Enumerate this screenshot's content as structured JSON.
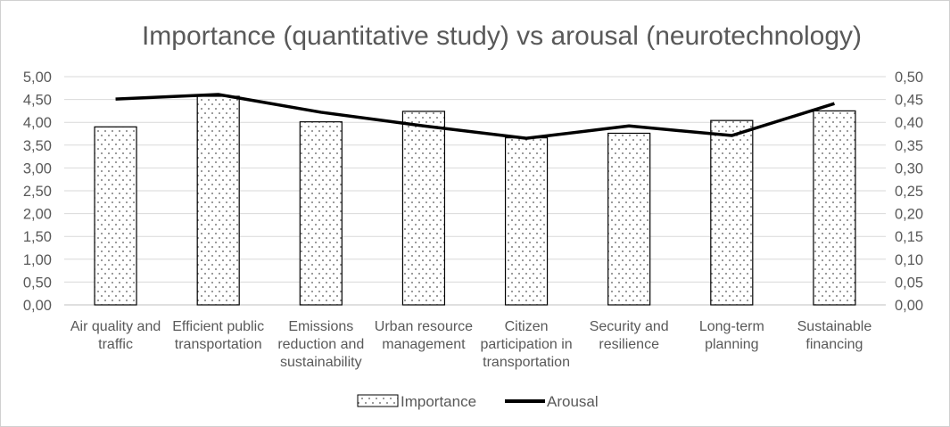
{
  "chart_data": {
    "type": "bar",
    "title": "Importance (quantitative study) vs arousal (neurotechnology)",
    "categories": [
      [
        "Air quality and",
        "traffic"
      ],
      [
        "Efficient public",
        "transportation"
      ],
      [
        "Emissions",
        "reduction and",
        "sustainability"
      ],
      [
        "Urban resource",
        "management"
      ],
      [
        "Citizen",
        "participation in",
        "transportation"
      ],
      [
        "Security and",
        "resilience"
      ],
      [
        "Long-term",
        "planning"
      ],
      [
        "Sustainable",
        "financing"
      ]
    ],
    "series": [
      {
        "name": "Importance",
        "type": "bar",
        "axis": "left",
        "values": [
          3.9,
          4.57,
          4.01,
          4.24,
          3.66,
          3.76,
          4.04,
          4.25
        ]
      },
      {
        "name": "Arousal",
        "type": "line",
        "axis": "right",
        "values": [
          0.451,
          0.461,
          0.422,
          0.392,
          0.365,
          0.392,
          0.371,
          0.441
        ]
      }
    ],
    "y_left": {
      "min": 0,
      "max": 5,
      "ticks": [
        "0,00",
        "0,50",
        "1,00",
        "1,50",
        "2,00",
        "2,50",
        "3,00",
        "3,50",
        "4,00",
        "4,50",
        "5,00"
      ]
    },
    "y_right": {
      "min": 0,
      "max": 0.5,
      "ticks": [
        "0,00",
        "0,05",
        "0,10",
        "0,15",
        "0,20",
        "0,25",
        "0,30",
        "0,35",
        "0,40",
        "0,45",
        "0,50"
      ]
    },
    "grid": true,
    "legend": "bottom",
    "colors": {
      "bar_fill": "#ffffff",
      "bar_dots": "#555555",
      "bar_border": "#000000",
      "line": "#000000",
      "grid": "#d9d9d9",
      "text": "#595959"
    }
  }
}
